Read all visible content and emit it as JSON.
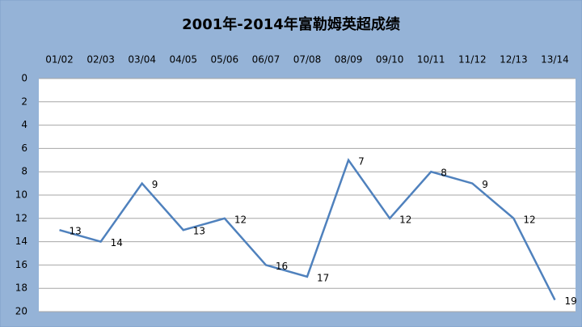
{
  "chart_data": {
    "type": "line",
    "title": "2001年-2014年富勒姆英超成绩",
    "categories": [
      "01/02",
      "02/03",
      "03/04",
      "04/05",
      "05/06",
      "06/07",
      "07/08",
      "08/09",
      "09/10",
      "10/11",
      "11/12",
      "12/13",
      "13/14"
    ],
    "series": [
      {
        "color": "#4f81bd",
        "values": [
          13,
          14,
          9,
          13,
          12,
          16,
          17,
          7,
          12,
          8,
          9,
          12,
          19
        ]
      }
    ],
    "ylim": [
      0,
      20
    ],
    "yticks": [
      0,
      2,
      4,
      6,
      8,
      10,
      12,
      14,
      16,
      18,
      20
    ],
    "y_inverted": true,
    "grid": true,
    "data_labels": true
  }
}
